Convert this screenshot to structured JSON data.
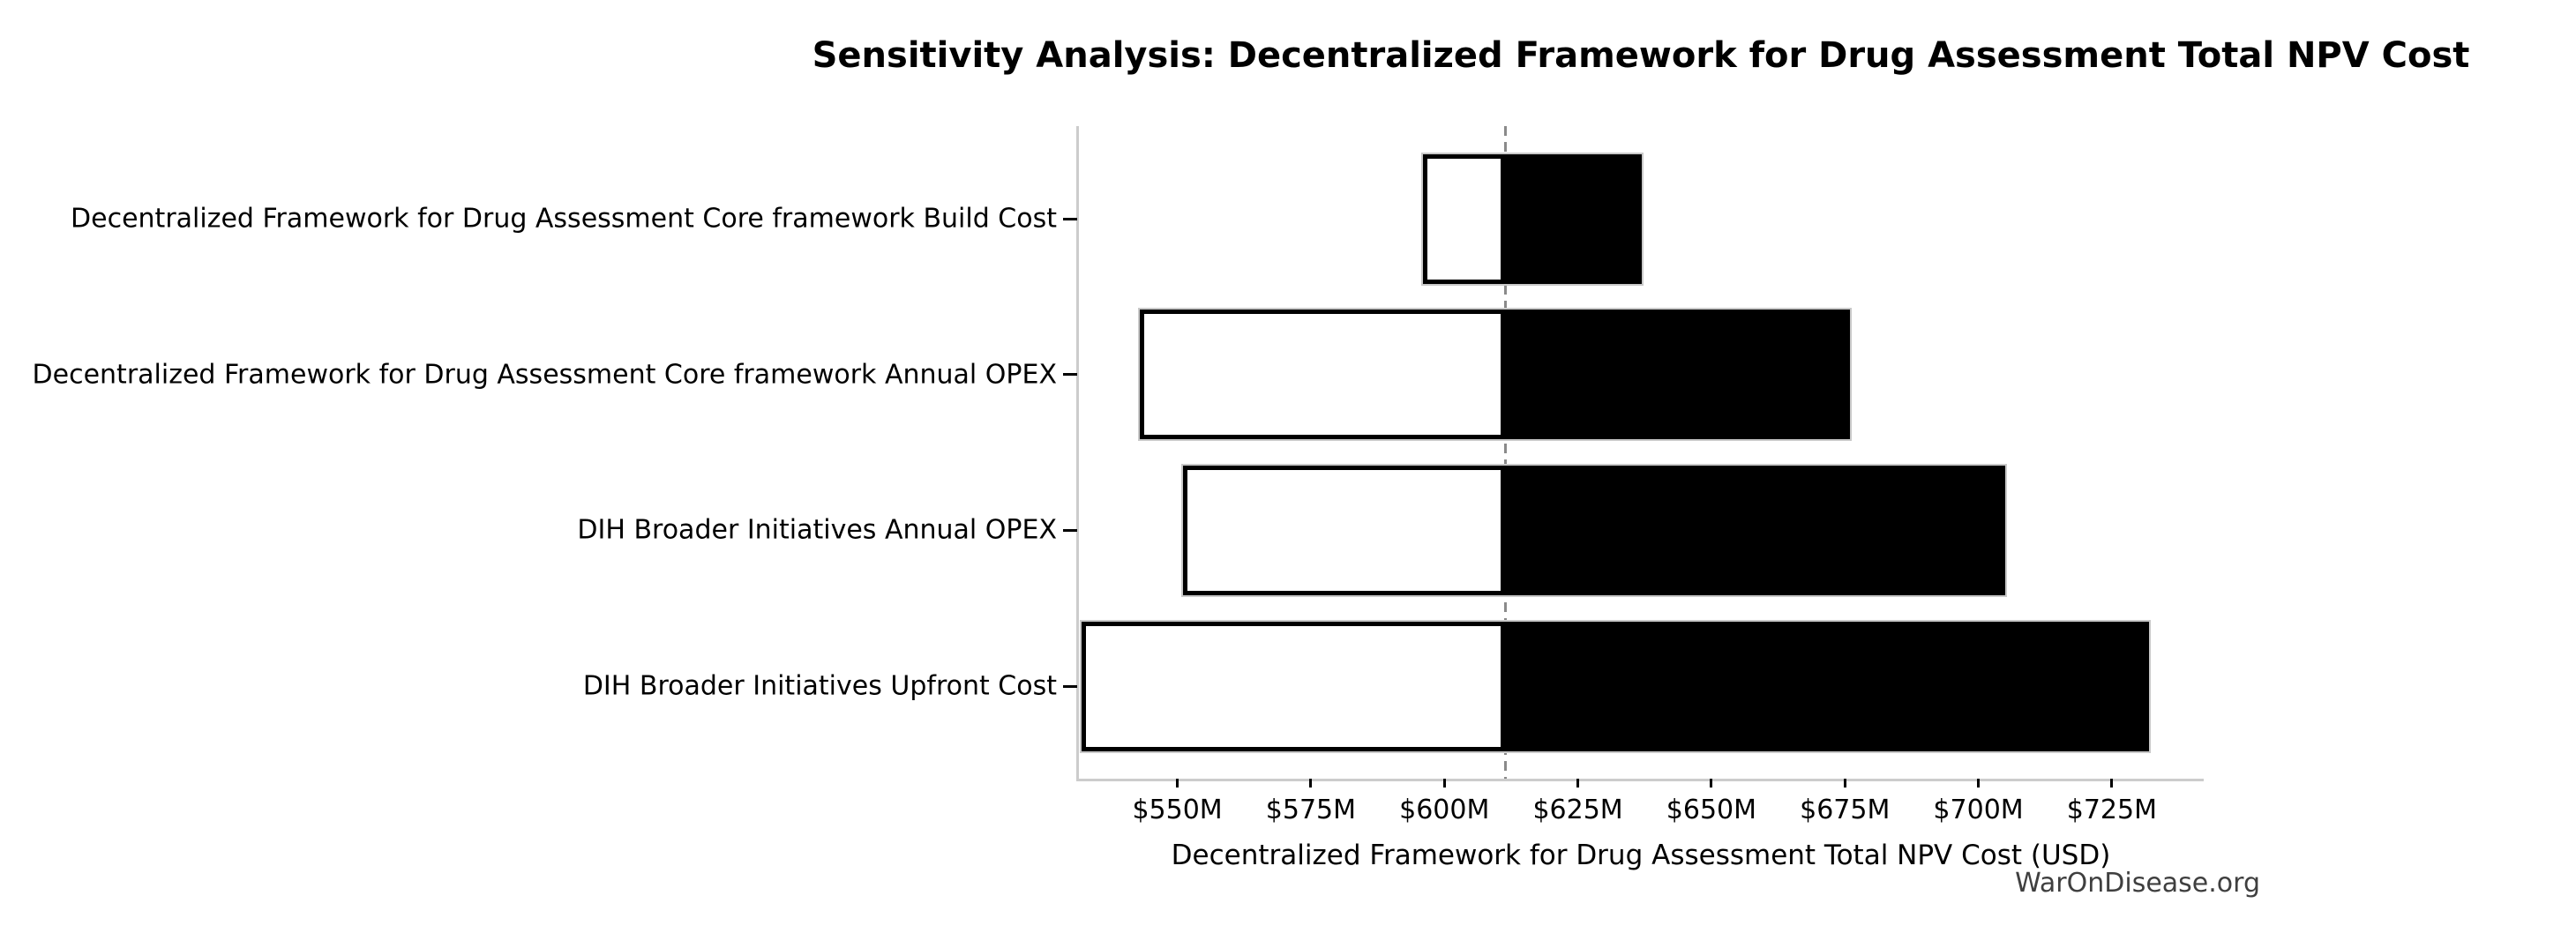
{
  "chart_data": {
    "type": "bar",
    "variant": "tornado-sensitivity",
    "title": "Sensitivity Analysis: Decentralized Framework for Drug Assessment Total NPV Cost",
    "xlabel": "Decentralized Framework for Drug Assessment Total NPV Cost (USD)",
    "ylabel": "",
    "watermark": "WarOnDisease.org",
    "x_unit": "USD millions",
    "baseline_value": 611.4,
    "xlim": [
      531.4,
      742.2
    ],
    "grid": false,
    "legend": null,
    "x_ticks": [
      {
        "value": 550,
        "label": "$550M"
      },
      {
        "value": 575,
        "label": "$575M"
      },
      {
        "value": 600,
        "label": "$600M"
      },
      {
        "value": 625,
        "label": "$625M"
      },
      {
        "value": 650,
        "label": "$650M"
      },
      {
        "value": 675,
        "label": "$675M"
      },
      {
        "value": 700,
        "label": "$700M"
      },
      {
        "value": 725,
        "label": "$725M"
      }
    ],
    "bars": [
      {
        "label": "Decentralized Framework for Drug Assessment Core framework Build Cost",
        "low": 596,
        "high": 637
      },
      {
        "label": "Decentralized Framework for Drug Assessment Core framework Annual OPEX",
        "low": 543,
        "high": 676
      },
      {
        "label": "DIH Broader Initiatives Annual OPEX",
        "low": 551,
        "high": 705
      },
      {
        "label": "DIH Broader Initiatives Upfront Cost",
        "low": 532,
        "high": 732
      }
    ],
    "colors": {
      "low_fill": "#ffffff",
      "high_fill": "#000000",
      "low_edge": "#000000",
      "bar_outline": "#c9c9c9",
      "baseline_line": "#8a8a8a",
      "spine": "#cccccc",
      "text": "#000000",
      "watermark_text": "#3f3f3f"
    }
  }
}
